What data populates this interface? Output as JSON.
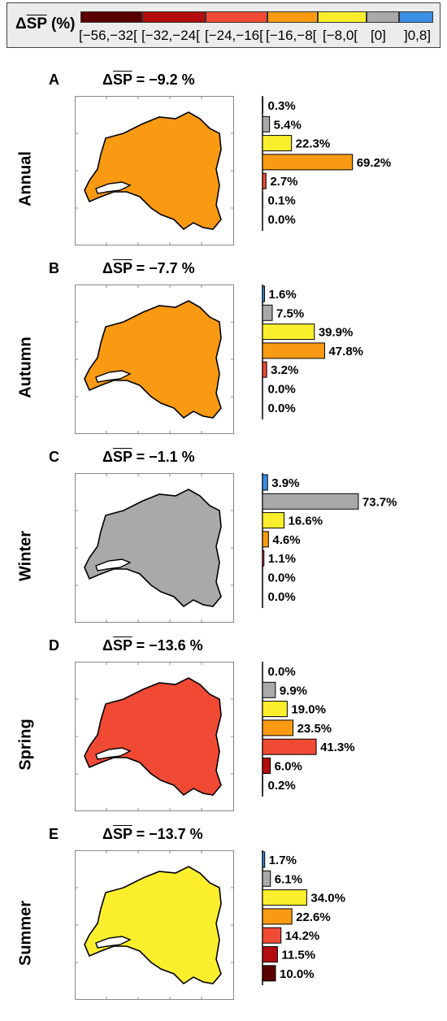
{
  "legend": {
    "title": "ΔSP (%)",
    "title_prefix": "Δ",
    "title_overline": "SP",
    "title_suffix": " (%)",
    "classes": [
      {
        "label": "[−56,−32[",
        "color": "#5a0000"
      },
      {
        "label": "[−32,−24[",
        "color": "#b30d0d"
      },
      {
        "label": "[−24,−16[",
        "color": "#f04a35"
      },
      {
        "label": "[−16,−8[",
        "color": "#f99a12"
      },
      {
        "label": "[−8,0[",
        "color": "#fbef2d"
      },
      {
        "label": "[0]",
        "color": "#a9a9a9"
      },
      {
        "label": "]0,8]",
        "color": "#3a8ee6"
      }
    ]
  },
  "chart_data": [
    {
      "type": "bar",
      "panel": "A",
      "season": "Annual",
      "title": "ΔSP = −9.2 %",
      "mean_change": "−9.2 %",
      "categories": [
        "]0,8]",
        "[0]",
        "[−8,0[",
        "[−16,−8[",
        "[−24,−16[",
        "[−32,−24[",
        "[−56,−32["
      ],
      "values": [
        0.3,
        5.4,
        22.3,
        69.2,
        2.7,
        0.1,
        0.0
      ],
      "labels": [
        "0.3%",
        "5.4%",
        "22.3%",
        "69.2%",
        "2.7%",
        "0.1%",
        "0.0%"
      ],
      "map_dominant": "[−16,−8["
    },
    {
      "type": "bar",
      "panel": "B",
      "season": "Autumn",
      "title": "ΔSP = −7.7 %",
      "mean_change": "−7.7 %",
      "categories": [
        "]0,8]",
        "[0]",
        "[−8,0[",
        "[−16,−8[",
        "[−24,−16[",
        "[−32,−24[",
        "[−56,−32["
      ],
      "values": [
        1.6,
        7.5,
        39.9,
        47.8,
        3.2,
        0.0,
        0.0
      ],
      "labels": [
        "1.6%",
        "7.5%",
        "39.9%",
        "47.8%",
        "3.2%",
        "0.0%",
        "0.0%"
      ],
      "map_dominant": "[−16,−8["
    },
    {
      "type": "bar",
      "panel": "C",
      "season": "Winter",
      "title": "ΔSP = −1.1 %",
      "mean_change": "−1.1 %",
      "categories": [
        "]0,8]",
        "[0]",
        "[−8,0[",
        "[−16,−8[",
        "[−24,−16[",
        "[−32,−24[",
        "[−56,−32["
      ],
      "values": [
        3.9,
        73.7,
        16.6,
        4.6,
        1.1,
        0.0,
        0.0
      ],
      "labels": [
        "3.9%",
        "73.7%",
        "16.6%",
        "4.6%",
        "1.1%",
        "0.0%",
        "0.0%"
      ],
      "map_dominant": "[0]"
    },
    {
      "type": "bar",
      "panel": "D",
      "season": "Spring",
      "title": "ΔSP = −13.6 %",
      "mean_change": "−13.6 %",
      "categories": [
        "]0,8]",
        "[0]",
        "[−8,0[",
        "[−16,−8[",
        "[−24,−16[",
        "[−32,−24[",
        "[−56,−32["
      ],
      "values": [
        0.0,
        9.9,
        19.0,
        23.5,
        41.3,
        6.0,
        0.2
      ],
      "labels": [
        "0.0%",
        "9.9%",
        "19.0%",
        "23.5%",
        "41.3%",
        "6.0%",
        "0.2%"
      ],
      "map_dominant": "[−24,−16["
    },
    {
      "type": "bar",
      "panel": "E",
      "season": "Summer",
      "title": "ΔSP = −13.7 %",
      "mean_change": "−13.7 %",
      "categories": [
        "]0,8]",
        "[0]",
        "[−8,0[",
        "[−16,−8[",
        "[−24,−16[",
        "[−32,−24[",
        "[−56,−32["
      ],
      "values": [
        1.7,
        6.1,
        34.0,
        22.6,
        14.2,
        11.5,
        10.0
      ],
      "labels": [
        "1.7%",
        "6.1%",
        "34.0%",
        "22.6%",
        "14.2%",
        "11.5%",
        "10.0%"
      ],
      "map_dominant": "[−8,0["
    }
  ]
}
